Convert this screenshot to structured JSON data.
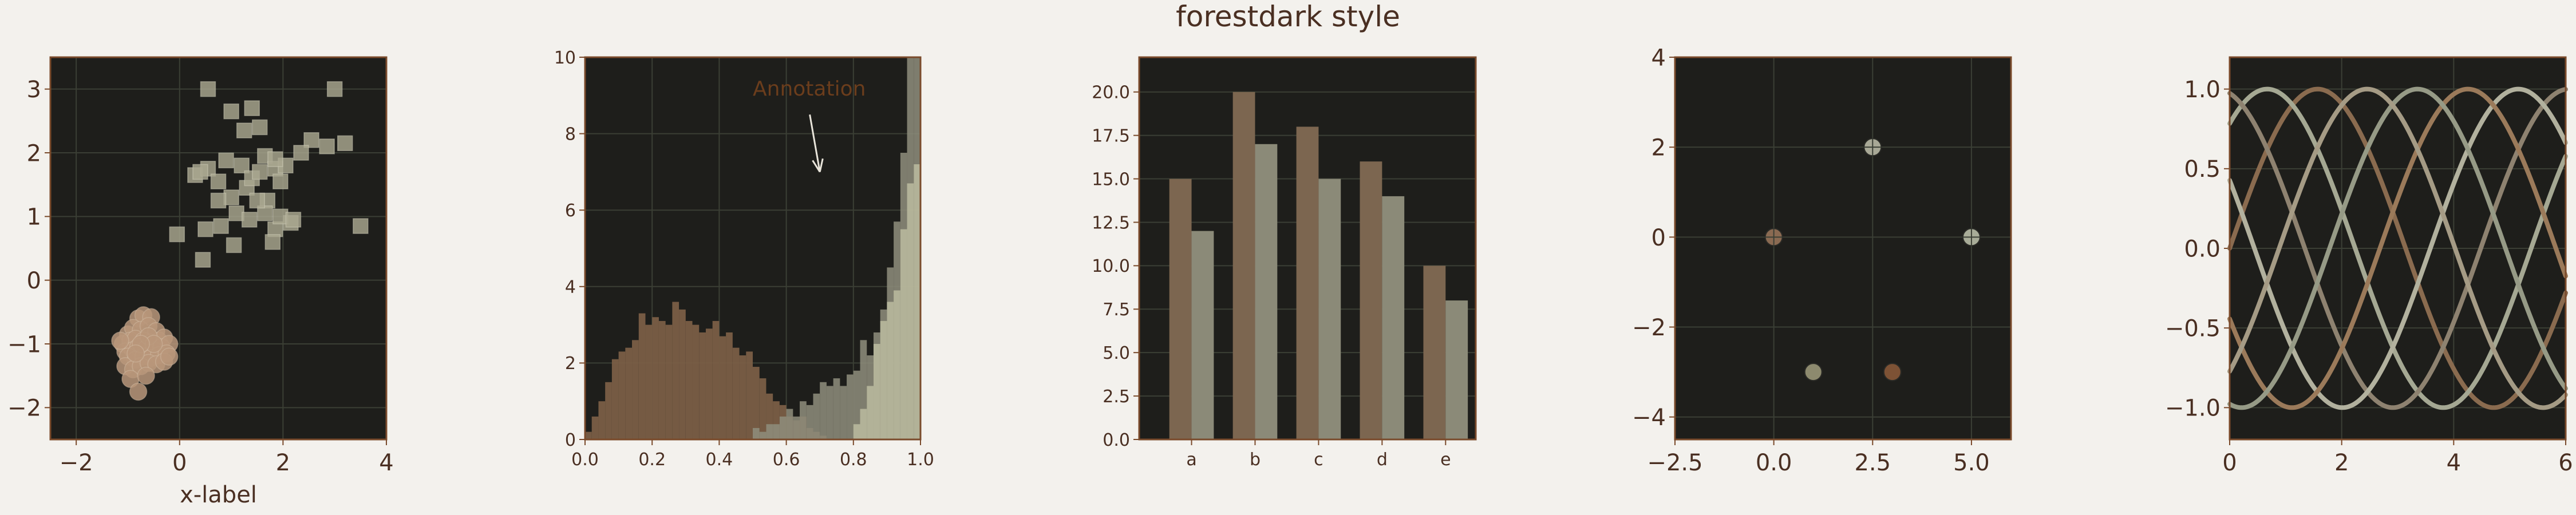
{
  "figure": {
    "title": "forestdark style",
    "background": "#f3f1ed",
    "axes_facecolor": "#1e1e1b",
    "axes_edgecolor": "#7a4a2b",
    "grid_color": "#3b3f35",
    "text_color": "#4a2f22"
  },
  "chart_data": [
    {
      "type": "scatter",
      "xlabel": "x-label",
      "xlim": [
        -2.5,
        4
      ],
      "ylim": [
        -2.5,
        3.5
      ],
      "xticks": [
        "−2",
        "0",
        "2",
        "4"
      ],
      "yticks": [
        "−2",
        "−1",
        "0",
        "1",
        "2",
        "3"
      ],
      "grid": true,
      "series": [
        {
          "marker": "circle",
          "color": "#b9977a",
          "points": [
            [
              -0.95,
              -1.05
            ],
            [
              -0.8,
              -0.6
            ],
            [
              -0.7,
              -0.55
            ],
            [
              -0.55,
              -0.58
            ],
            [
              -1.0,
              -0.85
            ],
            [
              -0.9,
              -0.75
            ],
            [
              -0.75,
              -0.78
            ],
            [
              -0.6,
              -0.72
            ],
            [
              -0.45,
              -0.8
            ],
            [
              -1.1,
              -1.0
            ],
            [
              -0.95,
              -0.95
            ],
            [
              -0.85,
              -0.92
            ],
            [
              -0.7,
              -0.95
            ],
            [
              -0.55,
              -0.98
            ],
            [
              -0.4,
              -0.95
            ],
            [
              -0.3,
              -0.9
            ],
            [
              -1.05,
              -1.12
            ],
            [
              -0.9,
              -1.1
            ],
            [
              -0.8,
              -1.05
            ],
            [
              -0.65,
              -1.08
            ],
            [
              -0.5,
              -1.1
            ],
            [
              -0.35,
              -1.05
            ],
            [
              -0.2,
              -1.0
            ],
            [
              -1.0,
              -1.2
            ],
            [
              -0.85,
              -1.25
            ],
            [
              -0.7,
              -1.2
            ],
            [
              -0.55,
              -1.22
            ],
            [
              -0.4,
              -1.18
            ],
            [
              -0.25,
              -1.15
            ],
            [
              -1.05,
              -1.35
            ],
            [
              -0.9,
              -1.4
            ],
            [
              -0.75,
              -1.35
            ],
            [
              -0.6,
              -1.3
            ],
            [
              -0.45,
              -1.32
            ],
            [
              -0.3,
              -1.28
            ],
            [
              -0.95,
              -1.55
            ],
            [
              -0.65,
              -1.5
            ],
            [
              -0.8,
              -1.75
            ],
            [
              -0.2,
              -1.2
            ],
            [
              -1.15,
              -0.95
            ],
            [
              -0.6,
              -0.88
            ],
            [
              -0.5,
              -1.0
            ],
            [
              -0.75,
              -1.0
            ],
            [
              -0.85,
              -1.15
            ]
          ]
        },
        {
          "marker": "square",
          "color": "#a9a790",
          "points": [
            [
              0.55,
              3.0
            ],
            [
              3.0,
              3.0
            ],
            [
              1.0,
              2.65
            ],
            [
              1.4,
              2.7
            ],
            [
              1.25,
              2.35
            ],
            [
              1.55,
              2.4
            ],
            [
              2.55,
              2.2
            ],
            [
              2.35,
              2.0
            ],
            [
              3.2,
              2.15
            ],
            [
              2.85,
              2.1
            ],
            [
              0.3,
              1.65
            ],
            [
              0.55,
              1.75
            ],
            [
              0.75,
              1.55
            ],
            [
              0.9,
              1.88
            ],
            [
              1.2,
              1.8
            ],
            [
              1.3,
              1.45
            ],
            [
              1.65,
              1.95
            ],
            [
              1.85,
              1.75
            ],
            [
              1.95,
              1.55
            ],
            [
              2.05,
              1.8
            ],
            [
              0.4,
              1.7
            ],
            [
              1.0,
              1.3
            ],
            [
              1.4,
              1.6
            ],
            [
              1.55,
              1.7
            ],
            [
              1.7,
              1.25
            ],
            [
              1.1,
              1.05
            ],
            [
              1.65,
              1.05
            ],
            [
              1.85,
              0.8
            ],
            [
              2.15,
              0.9
            ],
            [
              1.35,
              0.95
            ],
            [
              0.5,
              0.8
            ],
            [
              0.8,
              0.85
            ],
            [
              1.8,
              0.6
            ],
            [
              -0.05,
              0.72
            ],
            [
              0.45,
              0.32
            ],
            [
              3.5,
              0.85
            ],
            [
              1.95,
              1.0
            ],
            [
              2.2,
              0.95
            ],
            [
              1.05,
              0.55
            ],
            [
              0.75,
              1.25
            ],
            [
              1.85,
              1.9
            ],
            [
              1.5,
              1.25
            ]
          ]
        }
      ]
    },
    {
      "type": "bar",
      "subtype": "histogram",
      "xlim": [
        0.0,
        1.0
      ],
      "ylim": [
        0,
        10
      ],
      "xticks": [
        "0.0",
        "0.2",
        "0.4",
        "0.6",
        "0.8",
        "1.0"
      ],
      "yticks": [
        "0",
        "2",
        "4",
        "6",
        "8",
        "10"
      ],
      "grid": true,
      "bin_width": 0.02,
      "series": [
        {
          "color": "#7a5e46",
          "alpha": 0.95,
          "counts": [
            0.2,
            0.6,
            1.0,
            1.5,
            2.1,
            2.3,
            2.4,
            2.6,
            3.3,
            3.0,
            3.2,
            3.1,
            3.0,
            3.6,
            3.4,
            3.1,
            3.0,
            2.8,
            2.9,
            3.1,
            2.7,
            2.8,
            2.4,
            2.2,
            2.3,
            1.9,
            1.6,
            1.2,
            1.0,
            0.9,
            0.6,
            0.5,
            0.6,
            0.3,
            0.2,
            0.1
          ]
        },
        {
          "color": "#8f8e7c",
          "alpha": 0.85,
          "start": 0.5,
          "counts": [
            0.3,
            0.2,
            0.4,
            0.4,
            0.6,
            0.8,
            0.6,
            1.0,
            0.9,
            1.2,
            1.5,
            1.4,
            1.6,
            1.4,
            1.7,
            1.8,
            2.6,
            2.2,
            2.8,
            3.4,
            4.5,
            5.7,
            7.5,
            10.0,
            10.0
          ]
        },
        {
          "color": "#b8b89c",
          "alpha": 0.9,
          "start": 0.8,
          "counts": [
            0.4,
            0.8,
            1.4,
            2.5,
            3.1,
            3.6,
            3.9,
            5.5,
            6.7,
            7.2,
            3.9,
            2.2,
            0.9,
            0.6,
            0.0
          ]
        }
      ],
      "annotations": [
        {
          "text": "Annotation",
          "xytext": [
            0.5,
            9.0
          ],
          "xy": [
            0.7,
            7.0
          ]
        }
      ]
    },
    {
      "type": "bar",
      "categories": [
        "a",
        "b",
        "c",
        "d",
        "e"
      ],
      "ylim": [
        0,
        22
      ],
      "yticks": [
        "0.0",
        "2.5",
        "5.0",
        "7.5",
        "10.0",
        "12.5",
        "15.0",
        "17.5",
        "20.0"
      ],
      "grid": true,
      "series": [
        {
          "color": "#7c6650",
          "values": [
            15,
            20,
            18,
            16,
            10
          ]
        },
        {
          "color": "#8b8a78",
          "values": [
            12,
            17,
            15,
            14,
            8
          ]
        }
      ]
    },
    {
      "type": "scatter",
      "xlim": [
        -2.5,
        6.0
      ],
      "ylim": [
        -4.5,
        4.0
      ],
      "xticks": [
        "−2.5",
        "0.0",
        "2.5",
        "5.0"
      ],
      "yticks": [
        "−4",
        "−2",
        "0",
        "2",
        "4"
      ],
      "grid": true,
      "points": [
        {
          "x": 0.0,
          "y": 0.0,
          "color": "#8a6a52",
          "cross": true
        },
        {
          "x": 2.5,
          "y": 2.0,
          "color": "#a8a896",
          "cross": true
        },
        {
          "x": 5.0,
          "y": 0.0,
          "color": "#a8ac98",
          "cross": true
        },
        {
          "x": 1.0,
          "y": -3.0,
          "color": "#8d8a6e",
          "cross": false
        },
        {
          "x": 3.0,
          "y": -3.0,
          "color": "#7d5235",
          "cross": false
        }
      ]
    },
    {
      "type": "line",
      "xlim": [
        0,
        6
      ],
      "ylim": [
        -1.2,
        1.2
      ],
      "xticks": [
        "0",
        "2",
        "4",
        "6"
      ],
      "yticks": [
        "−1.0",
        "−0.5",
        "0.0",
        "0.5",
        "1.0"
      ],
      "grid": true,
      "function": "sin(x + phase)",
      "series": [
        {
          "phase": 0.0,
          "color": "#8a6b4f"
        },
        {
          "phase": 0.9,
          "color": "#a5a893"
        },
        {
          "phase": 1.8,
          "color": "#8e8270"
        },
        {
          "phase": 2.7,
          "color": "#b2b19e"
        },
        {
          "phase": 3.6,
          "color": "#9b7a5a"
        },
        {
          "phase": 4.5,
          "color": "#969a86"
        },
        {
          "phase": 5.4,
          "color": "#a59b85"
        }
      ]
    }
  ]
}
